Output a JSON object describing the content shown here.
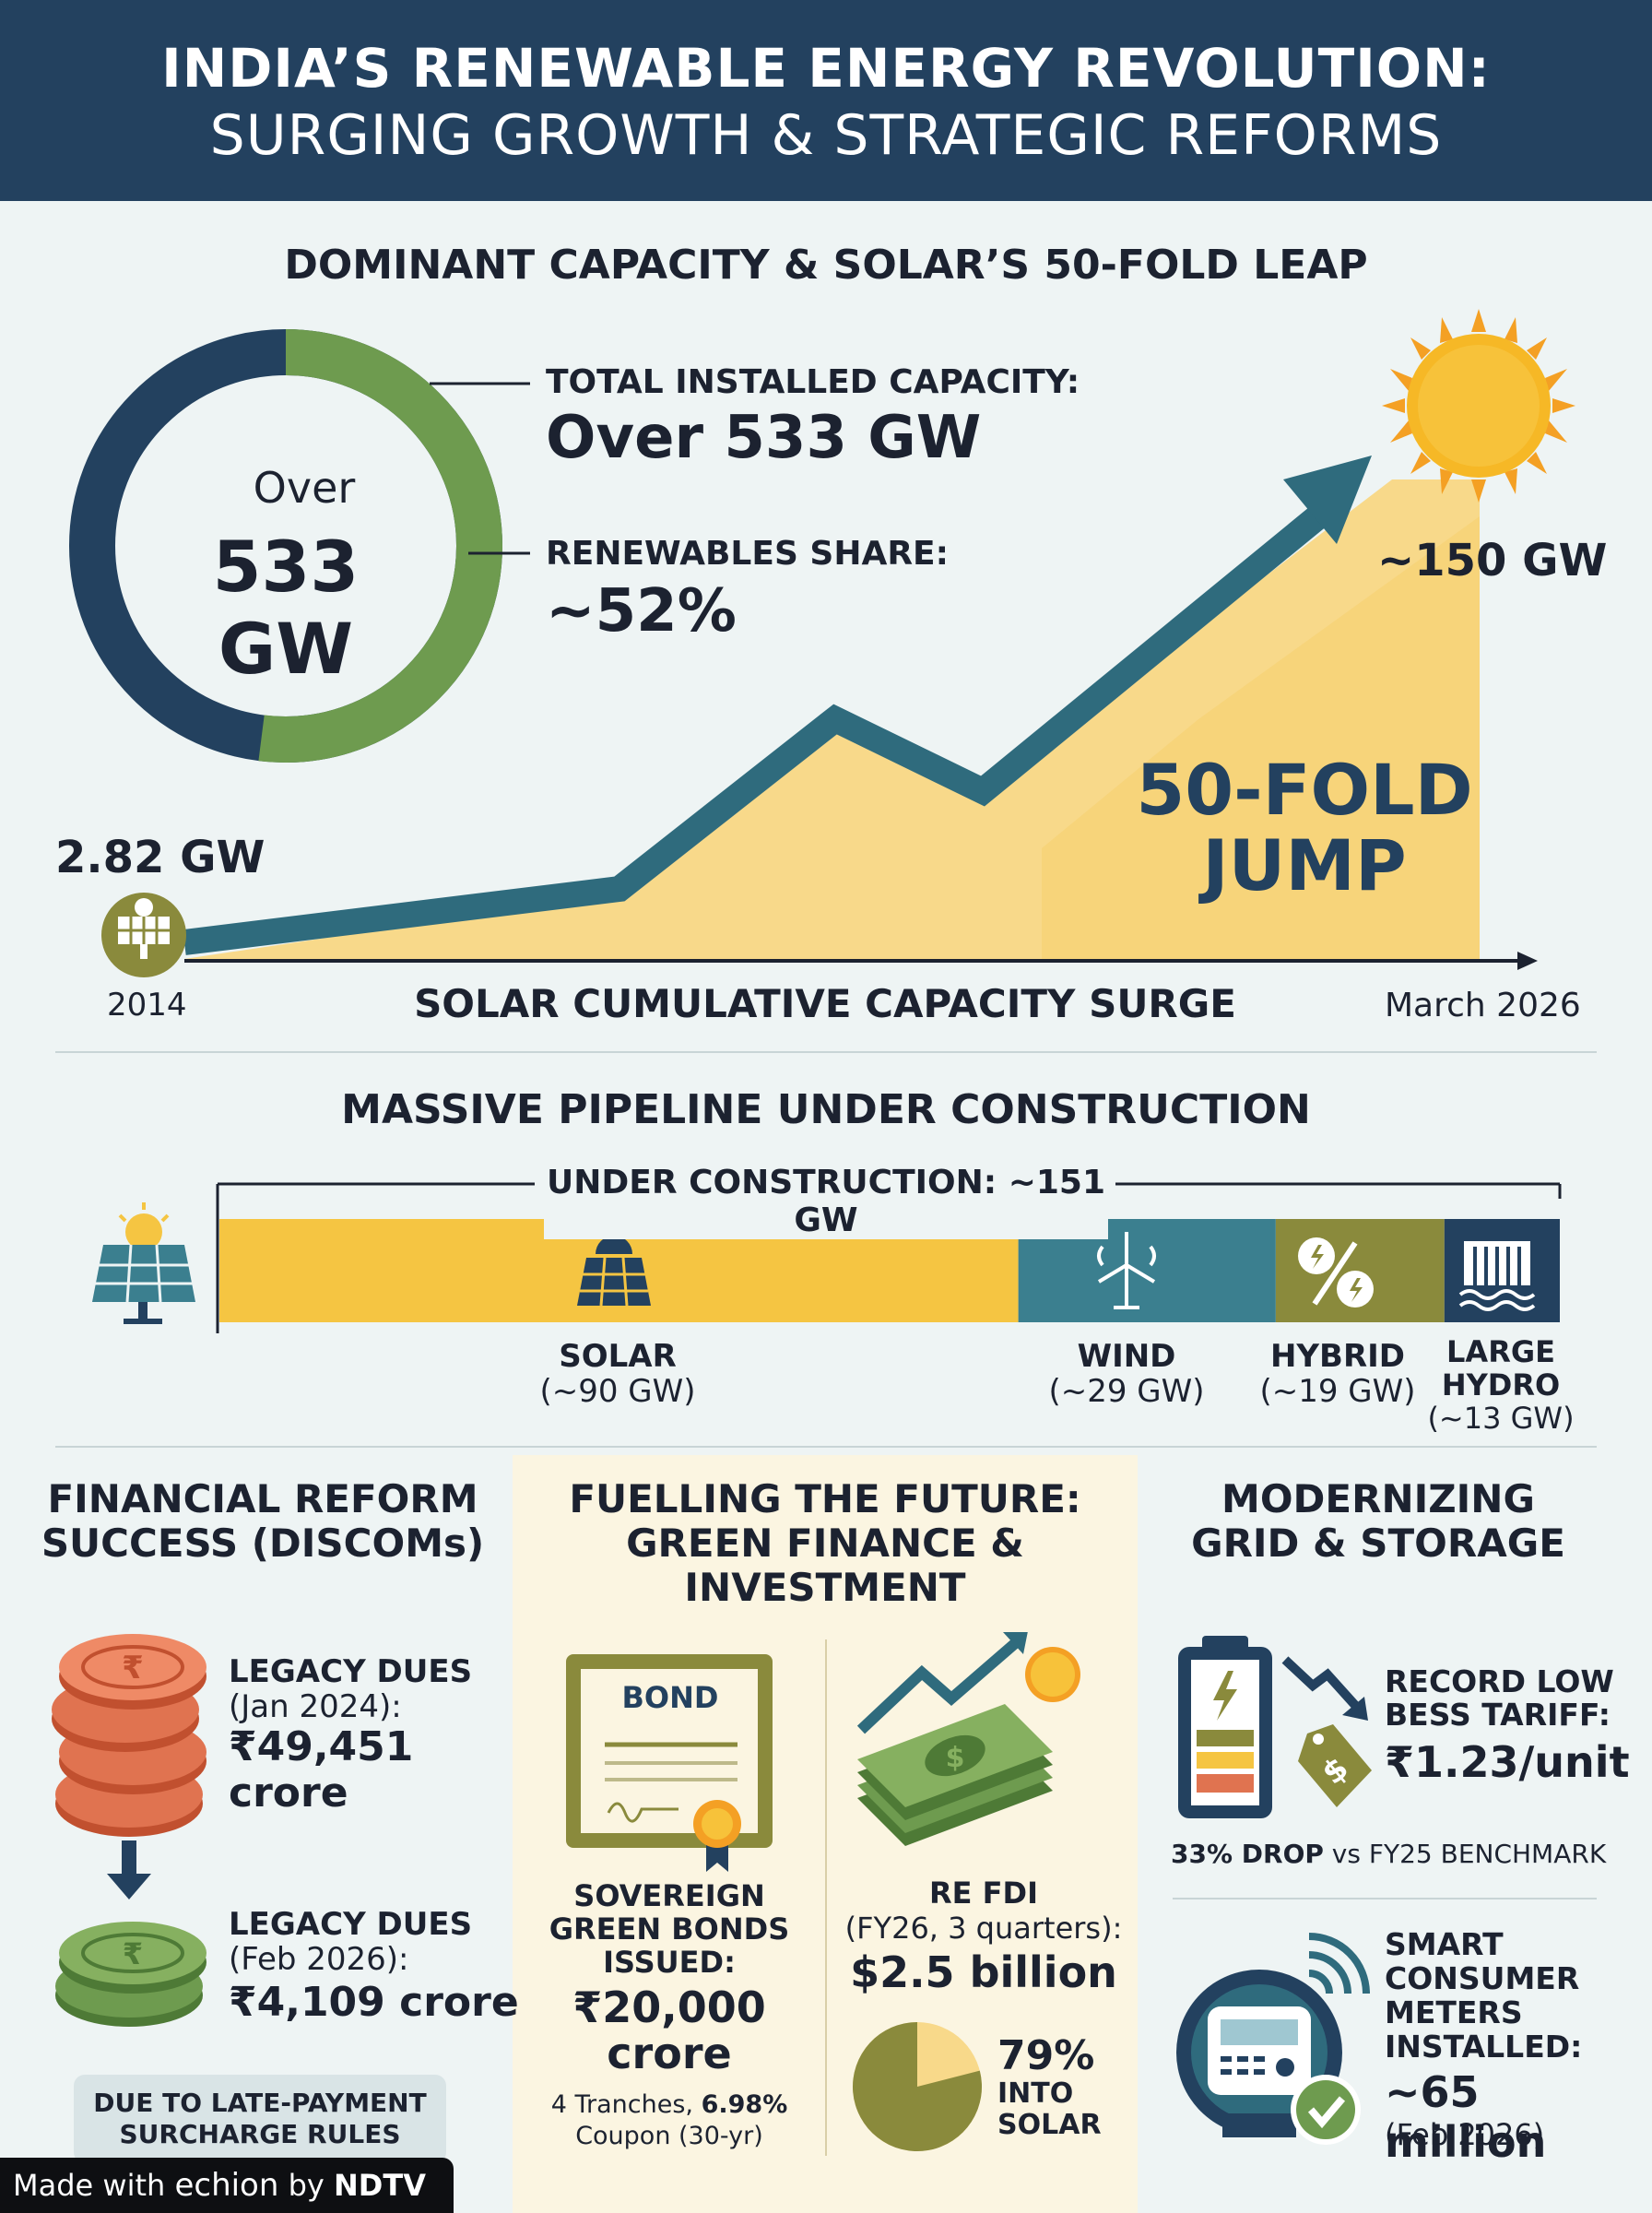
{
  "header": {
    "title_line1": "INDIA’S RENEWABLE ENERGY REVOLUTION:",
    "title_line2": "SURGING GROWTH & STRATEGIC REFORMS"
  },
  "capacity": {
    "section_title": "DOMINANT CAPACITY & SOLAR’S 50-FOLD LEAP",
    "donut_over": "Over",
    "donut_value": "533 GW",
    "total_label": "TOTAL INSTALLED CAPACITY:",
    "total_value": "Over 533 GW",
    "share_label": "RENEWABLES SHARE:",
    "share_value": "~52%",
    "renewables_share_fraction": 0.52,
    "colors": {
      "renewables": "#6e9b4f",
      "other": "#23415f"
    }
  },
  "solar_growth": {
    "start_value": "2.82 GW",
    "end_value": "~150 GW",
    "jump_line1": "50-FOLD",
    "jump_line2": "JUMP",
    "start_year": "2014",
    "end_label": "March 2026",
    "axis_title": "SOLAR CUMULATIVE CAPACITY SURGE"
  },
  "pipeline": {
    "section_title": "MASSIVE PIPELINE UNDER CONSTRUCTION",
    "total_label": "UNDER CONSTRUCTION: ~151 GW",
    "segments": [
      {
        "name": "SOLAR",
        "value_label": "(~90 GW)",
        "gw": 90,
        "color": "#f5c542",
        "icon": "solar-panel-icon"
      },
      {
        "name": "WIND",
        "value_label": "(~29 GW)",
        "gw": 29,
        "color": "#3b7f8f",
        "icon": "wind-turbine-icon"
      },
      {
        "name": "HYBRID",
        "value_label": "(~19 GW)",
        "gw": 19,
        "color": "#8a8a3c",
        "icon": "hybrid-icon"
      },
      {
        "name_line1": "LARGE",
        "name_line2": "HYDRO",
        "value_label": "(~13 GW)",
        "gw": 13,
        "color": "#23415f",
        "icon": "dam-icon"
      }
    ]
  },
  "discoms": {
    "title_line1": "FINANCIAL REFORM",
    "title_line2": "SUCCESS (DISCOMs)",
    "legacy1_label": "LEGACY DUES",
    "legacy1_date": "(Jan 2024):",
    "legacy1_value_line1": "₹49,451",
    "legacy1_value_line2": "crore",
    "legacy2_label": "LEGACY DUES",
    "legacy2_date": "(Feb 2026):",
    "legacy2_value": "₹4,109 crore",
    "note_line1": "DUE TO LATE-PAYMENT",
    "note_line2": "SURCHARGE RULES"
  },
  "finance": {
    "title_line1": "FUELLING THE FUTURE:",
    "title_line2": "GREEN FINANCE &",
    "title_line3": "INVESTMENT",
    "bond_word": "BOND",
    "bonds_label_line1": "SOVEREIGN",
    "bonds_label_line2": "GREEN BONDS",
    "bonds_label_line3": "ISSUED:",
    "bonds_value_line1": "₹20,000",
    "bonds_value_line2": "crore",
    "bonds_tranches": "4 Tranches, ",
    "bonds_coupon_pct": "6.98%",
    "bonds_coupon_line2": "Coupon (30-yr)",
    "fdi_label": "RE FDI",
    "fdi_period": "(FY26, 3 quarters):",
    "fdi_value": "$2.5 billion",
    "solar_pct": "79%",
    "solar_pct_fraction": 0.79,
    "solar_line1": "INTO",
    "solar_line2": "SOLAR"
  },
  "grid": {
    "title_line1": "MODERNIZING",
    "title_line2": "GRID & STORAGE",
    "bess_line1": "RECORD LOW",
    "bess_line2": "BESS TARIFF:",
    "bess_value": "₹1.23/unit",
    "drop_bold": "33% DROP",
    "drop_rest": " vs FY25 BENCHMARK",
    "meter_line1": "SMART",
    "meter_line2": "CONSUMER",
    "meter_line3": "METERS",
    "meter_line4": "INSTALLED:",
    "meter_value": "~65 million",
    "meter_date": "(Feb 2026)"
  },
  "footer": {
    "made_with": "Made with ",
    "brand": "echion",
    "by": " by ",
    "publisher": "NDTV"
  }
}
